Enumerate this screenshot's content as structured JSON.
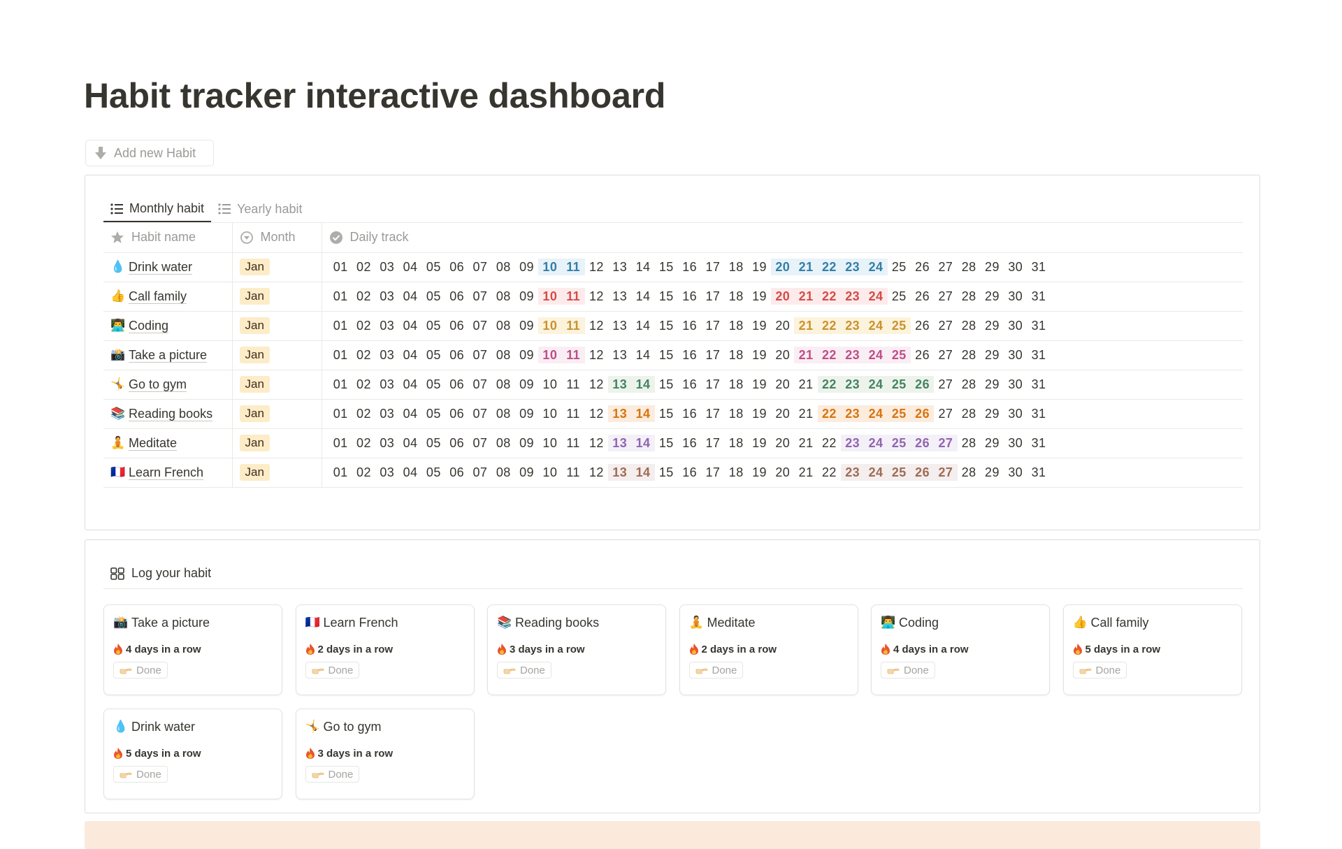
{
  "page": {
    "title": "Habit tracker interactive dashboard",
    "add_button": "Add new Habit"
  },
  "tabs": [
    {
      "label": "Monthly habit",
      "active": true
    },
    {
      "label": "Yearly habit",
      "active": false
    }
  ],
  "table": {
    "columns": [
      "Habit name",
      "Month",
      "Daily track"
    ],
    "days": [
      "01",
      "02",
      "03",
      "04",
      "05",
      "06",
      "07",
      "08",
      "09",
      "10",
      "11",
      "12",
      "13",
      "14",
      "15",
      "16",
      "17",
      "18",
      "19",
      "20",
      "21",
      "22",
      "23",
      "24",
      "25",
      "26",
      "27",
      "28",
      "29",
      "30",
      "31"
    ],
    "rows": [
      {
        "emoji": "💧",
        "name": "Drink water",
        "month": "Jan",
        "color": "#337ea9",
        "bg": "#e7f3f8",
        "highlighted": [
          10,
          11,
          20,
          21,
          22,
          23,
          24
        ]
      },
      {
        "emoji": "👍",
        "name": "Call family",
        "month": "Jan",
        "color": "#d44c47",
        "bg": "#fdebec",
        "highlighted": [
          10,
          11,
          20,
          21,
          22,
          23,
          24
        ]
      },
      {
        "emoji": "👨‍💻",
        "name": "Coding",
        "month": "Jan",
        "color": "#cb912f",
        "bg": "#fbf3db",
        "highlighted": [
          10,
          11,
          21,
          22,
          23,
          24,
          25
        ]
      },
      {
        "emoji": "📸",
        "name": "Take a picture",
        "month": "Jan",
        "color": "#c14c8a",
        "bg": "#f9eef3",
        "highlighted": [
          10,
          11,
          21,
          22,
          23,
          24,
          25
        ]
      },
      {
        "emoji": "🤸",
        "name": "Go to gym",
        "month": "Jan",
        "color": "#448361",
        "bg": "#edf3ec",
        "highlighted": [
          13,
          14,
          22,
          23,
          24,
          25,
          26
        ]
      },
      {
        "emoji": "📚",
        "name": "Reading books",
        "month": "Jan",
        "color": "#d9730d",
        "bg": "#fbecdd",
        "highlighted": [
          13,
          14,
          22,
          23,
          24,
          25,
          26
        ]
      },
      {
        "emoji": "🧘",
        "name": "Meditate",
        "month": "Jan",
        "color": "#9065b0",
        "bg": "#f4f0f7",
        "highlighted": [
          13,
          14,
          23,
          24,
          25,
          26,
          27
        ]
      },
      {
        "emoji": "🇫🇷",
        "name": "Learn French",
        "month": "Jan",
        "color": "#9f6b53",
        "bg": "#f4eeee",
        "highlighted": [
          13,
          14,
          23,
          24,
          25,
          26,
          27
        ]
      }
    ]
  },
  "log": {
    "title": "Log your habit",
    "done_label": "Done",
    "cards": [
      {
        "emoji": "📸",
        "name": "Take a picture",
        "streak": "4 days in a row"
      },
      {
        "emoji": "🇫🇷",
        "name": "Learn French",
        "streak": "2 days in a row"
      },
      {
        "emoji": "📚",
        "name": "Reading books",
        "streak": "3 days in a row"
      },
      {
        "emoji": "🧘",
        "name": "Meditate",
        "streak": "2 days in a row"
      },
      {
        "emoji": "👨‍💻",
        "name": "Coding",
        "streak": "4 days in a row"
      },
      {
        "emoji": "👍",
        "name": "Call family",
        "streak": "5 days in a row"
      },
      {
        "emoji": "💧",
        "name": "Drink water",
        "streak": "5 days in a row"
      },
      {
        "emoji": "🤸",
        "name": "Go to gym",
        "streak": "3 days in a row"
      }
    ]
  },
  "icons": {
    "add": "arrow-down-icon",
    "tab": "list-icon",
    "name_col": "star-icon",
    "month_col": "select-icon",
    "track_col": "check-badge-icon",
    "log": "gallery-icon",
    "streak": "fire-icon",
    "done": "pointing-hand-icon"
  }
}
